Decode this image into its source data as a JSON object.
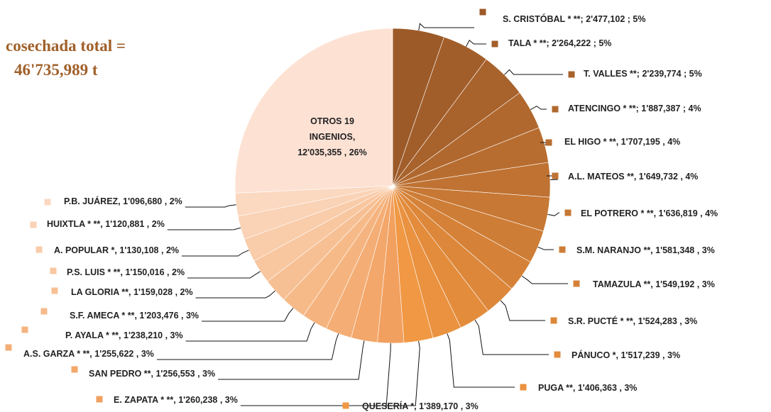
{
  "chart_data": {
    "type": "pie",
    "annotations": [
      "cosechada total =",
      "46'735,989 t"
    ],
    "categories": [
      "S. CRISTÓBAL * **;",
      "TALA * **;",
      "T. VALLES **;",
      "ATENCINGO * **;",
      "EL HIGO * **,",
      "A.L. MATEOS **,",
      "EL POTRERO  * **,",
      "S.M. NARANJO **,",
      "TAMAZULA **,",
      "S.R. PUCTÉ * **,",
      "PÁNUCO *,",
      "PUGA **,",
      "QUESERÍA *,",
      "E. ZAPATA * **,",
      "SAN PEDRO **,",
      "A.S. GARZA * **,",
      "P. AYALA * **,",
      "S.F. AMECA * **,",
      "LA GLORIA **,",
      "P.S. LUIS * **,",
      "A. POPULAR *,",
      "HUIXTLA * **,",
      "P.B. JUÁREZ,",
      "OTROS 19 INGENIOS,"
    ],
    "values": [
      2477102,
      2264222,
      2239774,
      1887387,
      1707195,
      1649732,
      1636819,
      1581348,
      1549192,
      1524283,
      1517239,
      1406363,
      1389170,
      1260238,
      1256553,
      1255622,
      1238210,
      1203476,
      1159028,
      1150016,
      1130108,
      1120881,
      1096680,
      12035355
    ],
    "value_labels": [
      "2'477,102 ;",
      "2'264,222 ;",
      "2'239,774 ;",
      "1'887,387 ;",
      "1'707,195 ,",
      "1'649,732 ,",
      "1'636,819 ,",
      "1'581,348 ,",
      "1'549,192 ,",
      "1'524,283 ,",
      "1'517,239 ,",
      "1'406,363 ,",
      "1'389,170 ,",
      "1'260,238 ,",
      "1'256,553 ,",
      "1'255,622 ,",
      "1'238,210 ,",
      "1'203,476 ,",
      "1'159,028 ,",
      "1'150,016 ,",
      "1'130,108 ,",
      "1'120,881 ,",
      "1'096,680 ,",
      "12'035,355 ,"
    ],
    "percents": [
      5,
      5,
      5,
      4,
      4,
      4,
      4,
      3,
      3,
      3,
      3,
      3,
      3,
      3,
      3,
      3,
      3,
      3,
      2,
      2,
      2,
      2,
      2,
      26
    ],
    "percent_labels": [
      "5%",
      "5%",
      "5%",
      "4%",
      "4%",
      "4%",
      "4%",
      "3%",
      "3%",
      "3%",
      "3%",
      "3%",
      "3%",
      "3%",
      "3%",
      "3%",
      "3%",
      "3%",
      "2%",
      "2%",
      "2%",
      "2%",
      "2%",
      "26%"
    ],
    "colors": [
      "#9c5a28",
      "#a25e2a",
      "#a8622c",
      "#b0682e",
      "#b86d30",
      "#bf7232",
      "#c77834",
      "#ce7d36",
      "#d58238",
      "#dc873a",
      "#e38c3c",
      "#ea923f",
      "#f09843",
      "#f2a060",
      "#f3a76a",
      "#f4ae75",
      "#f5b47f",
      "#f6ba89",
      "#f7c094",
      "#f8c69f",
      "#f9ccaa",
      "#fad2b5",
      "#fbd8c0",
      "#fde2d4"
    ]
  }
}
